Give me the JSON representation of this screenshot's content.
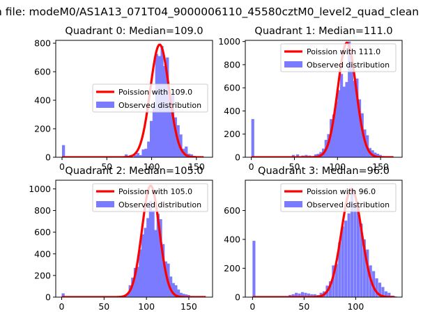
{
  "figure": {
    "title": "n file: modeM0/AS1A13_071T04_9000006110_45580cztM0_level2_quad_clean"
  },
  "colors": {
    "hist": "#7b7bff",
    "fit": "#ff0000",
    "axis": "#000000"
  },
  "chart_data": [
    {
      "type": "histogram",
      "title": "Quadrant 0: Median=109.0",
      "median": 109.0,
      "xlim": [
        -7,
        168
      ],
      "ylim": [
        0,
        820
      ],
      "xticks": [
        0,
        50,
        100,
        150
      ],
      "yticks": [
        0,
        200,
        400,
        600,
        800
      ],
      "bin_width": 3.3,
      "bins": [
        [
          0,
          85
        ],
        [
          10,
          5
        ],
        [
          20,
          5
        ],
        [
          30,
          5
        ],
        [
          40,
          5
        ],
        [
          50,
          5
        ],
        [
          56,
          5
        ],
        [
          70,
          20
        ],
        [
          75,
          15
        ],
        [
          80,
          15
        ],
        [
          83,
          30
        ],
        [
          86,
          15
        ],
        [
          89,
          55
        ],
        [
          92,
          60
        ],
        [
          95,
          110
        ],
        [
          98,
          255
        ],
        [
          101,
          360
        ],
        [
          104,
          725
        ],
        [
          107,
          710
        ],
        [
          110,
          780
        ],
        [
          113,
          640
        ],
        [
          116,
          700
        ],
        [
          119,
          430
        ],
        [
          122,
          440
        ],
        [
          125,
          280
        ],
        [
          128,
          225
        ],
        [
          131,
          160
        ],
        [
          134,
          60
        ],
        [
          137,
          75
        ],
        [
          140,
          25
        ],
        [
          143,
          20
        ],
        [
          146,
          10
        ],
        [
          149,
          5
        ],
        [
          152,
          5
        ],
        [
          155,
          5
        ]
      ],
      "fit": {
        "lambda": 109.0,
        "peak": 790,
        "x_range": [
          0,
          158
        ]
      },
      "legend": {
        "fit_label": "Poission with 109.0",
        "hist_label": "Observed distribution",
        "position": "center-right"
      }
    },
    {
      "type": "histogram",
      "title": "Quadrant 1: Median=111.0",
      "median": 111.0,
      "xlim": [
        -7,
        175
      ],
      "ylim": [
        0,
        1010
      ],
      "xticks": [
        0,
        50,
        100,
        150
      ],
      "yticks": [
        0,
        200,
        400,
        600,
        800,
        1000
      ],
      "bin_width": 3.4,
      "bins": [
        [
          0,
          330
        ],
        [
          10,
          5
        ],
        [
          20,
          5
        ],
        [
          30,
          5
        ],
        [
          40,
          5
        ],
        [
          47,
          20
        ],
        [
          52,
          25
        ],
        [
          58,
          15
        ],
        [
          62,
          20
        ],
        [
          66,
          15
        ],
        [
          70,
          10
        ],
        [
          73,
          25
        ],
        [
          76,
          30
        ],
        [
          79,
          45
        ],
        [
          82,
          75
        ],
        [
          85,
          150
        ],
        [
          88,
          200
        ],
        [
          91,
          330
        ],
        [
          94,
          370
        ],
        [
          97,
          480
        ],
        [
          100,
          580
        ],
        [
          103,
          720
        ],
        [
          106,
          610
        ],
        [
          109,
          650
        ],
        [
          112,
          1000
        ],
        [
          115,
          840
        ],
        [
          118,
          660
        ],
        [
          121,
          680
        ],
        [
          124,
          500
        ],
        [
          127,
          380
        ],
        [
          130,
          240
        ],
        [
          133,
          190
        ],
        [
          136,
          80
        ],
        [
          139,
          60
        ],
        [
          142,
          40
        ],
        [
          145,
          30
        ],
        [
          148,
          20
        ],
        [
          151,
          10
        ],
        [
          154,
          5
        ],
        [
          160,
          5
        ]
      ],
      "fit": {
        "lambda": 111.0,
        "peak": 990,
        "x_range": [
          0,
          165
        ]
      },
      "legend": {
        "fit_label": "Poission with 111.0",
        "hist_label": "Observed distribution",
        "position": "upper-right"
      }
    },
    {
      "type": "histogram",
      "title": "Quadrant 2: Median=105.0",
      "median": 105.0,
      "xlim": [
        -7,
        178
      ],
      "ylim": [
        0,
        1080
      ],
      "xticks": [
        0,
        50,
        100,
        150
      ],
      "yticks": [
        0,
        200,
        400,
        600,
        800,
        1000
      ],
      "bin_width": 3.5,
      "bins": [
        [
          0,
          35
        ],
        [
          10,
          5
        ],
        [
          20,
          5
        ],
        [
          30,
          5
        ],
        [
          40,
          5
        ],
        [
          50,
          5
        ],
        [
          60,
          5
        ],
        [
          66,
          5
        ],
        [
          70,
          10
        ],
        [
          73,
          20
        ],
        [
          76,
          35
        ],
        [
          79,
          110
        ],
        [
          82,
          180
        ],
        [
          85,
          270
        ],
        [
          88,
          280
        ],
        [
          91,
          440
        ],
        [
          94,
          580
        ],
        [
          97,
          640
        ],
        [
          100,
          730
        ],
        [
          103,
          890
        ],
        [
          106,
          800
        ],
        [
          109,
          620
        ],
        [
          112,
          770
        ],
        [
          115,
          720
        ],
        [
          118,
          490
        ],
        [
          121,
          330
        ],
        [
          124,
          310
        ],
        [
          127,
          190
        ],
        [
          130,
          130
        ],
        [
          133,
          110
        ],
        [
          136,
          70
        ],
        [
          139,
          40
        ],
        [
          142,
          30
        ],
        [
          145,
          25
        ],
        [
          148,
          20
        ],
        [
          151,
          10
        ],
        [
          155,
          5
        ],
        [
          160,
          5
        ],
        [
          165,
          5
        ]
      ],
      "fit": {
        "lambda": 105.0,
        "peak": 1030,
        "x_range": [
          0,
          170
        ]
      },
      "legend": {
        "fit_label": "Poission with 105.0",
        "hist_label": "Observed distribution",
        "position": "upper-right"
      }
    },
    {
      "type": "histogram",
      "title": "Quadrant 3: Median=96.0",
      "median": 96.0,
      "xlim": [
        -7,
        145
      ],
      "ylim": [
        0,
        810
      ],
      "xticks": [
        0,
        50,
        100
      ],
      "yticks": [
        0,
        200,
        400,
        600
      ],
      "bin_width": 2.8,
      "bins": [
        [
          0,
          390
        ],
        [
          5,
          5
        ],
        [
          10,
          5
        ],
        [
          15,
          5
        ],
        [
          20,
          5
        ],
        [
          25,
          5
        ],
        [
          30,
          5
        ],
        [
          35,
          15
        ],
        [
          38,
          20
        ],
        [
          41,
          30
        ],
        [
          44,
          25
        ],
        [
          47,
          35
        ],
        [
          50,
          30
        ],
        [
          53,
          25
        ],
        [
          56,
          20
        ],
        [
          59,
          20
        ],
        [
          62,
          15
        ],
        [
          65,
          30
        ],
        [
          68,
          40
        ],
        [
          71,
          80
        ],
        [
          74,
          110
        ],
        [
          77,
          220
        ],
        [
          80,
          230
        ],
        [
          83,
          380
        ],
        [
          86,
          490
        ],
        [
          89,
          530
        ],
        [
          92,
          580
        ],
        [
          95,
          740
        ],
        [
          98,
          630
        ],
        [
          101,
          620
        ],
        [
          104,
          510
        ],
        [
          107,
          400
        ],
        [
          110,
          330
        ],
        [
          113,
          220
        ],
        [
          116,
          180
        ],
        [
          119,
          130
        ],
        [
          122,
          100
        ],
        [
          125,
          70
        ],
        [
          128,
          40
        ],
        [
          131,
          30
        ],
        [
          134,
          10
        ],
        [
          137,
          5
        ]
      ],
      "fit": {
        "lambda": 96.0,
        "peak": 750,
        "x_range": [
          0,
          138
        ]
      },
      "legend": {
        "fit_label": "Poission with 96.0",
        "hist_label": "Observed distribution",
        "position": "upper-right"
      }
    }
  ]
}
